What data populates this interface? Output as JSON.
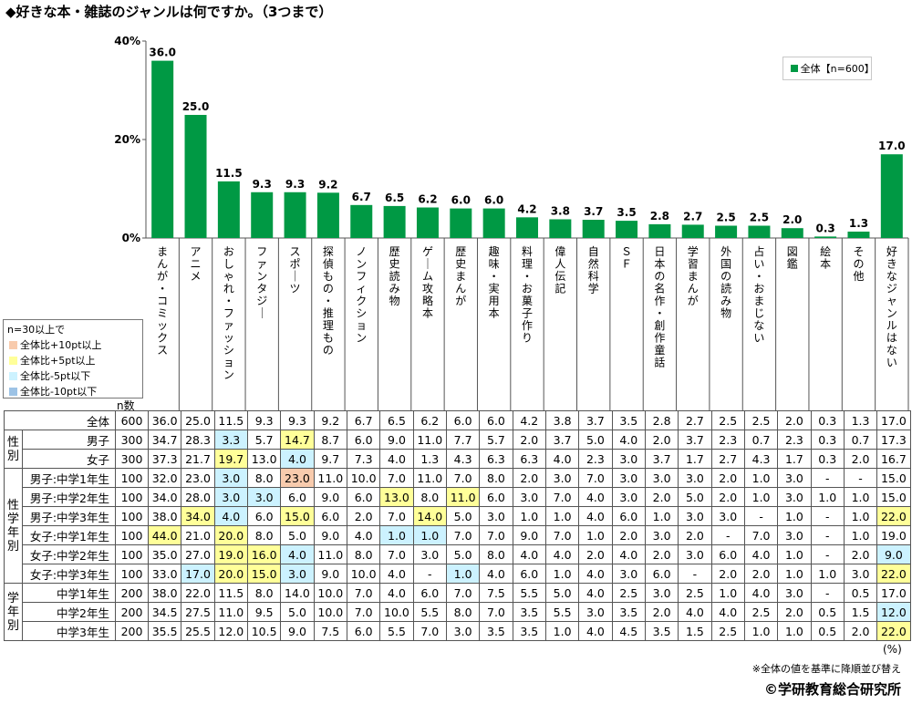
{
  "title": "◆好きな本・雑誌のジャンルは何ですか。（3つまで）",
  "legend_label": "全体【n=600】",
  "highlight_legend": {
    "header": "n=30以上で",
    "items": [
      {
        "label": "全体比+10pt以上",
        "color": "#f8cbad"
      },
      {
        "label": "全体比+5pt以上",
        "color": "#ffff99"
      },
      {
        "label": "全体比-5pt以下",
        "color": "#ccf2ff"
      },
      {
        "label": "全体比-10pt以下",
        "color": "#9dc3e6"
      }
    ]
  },
  "n_label": "n数",
  "unit_label": "(%)",
  "note": "※全体の値を基準に降順並び替え",
  "copyright": "©学研教育総合研究所",
  "colors": {
    "bar": "#009944",
    "plus10": "#f8cbad",
    "plus5": "#ffff99",
    "minus5": "#ccf2ff",
    "minus10": "#9dc3e6"
  },
  "chart_data": {
    "type": "bar",
    "title": "◆好きな本・雑誌のジャンルは何ですか。（3つまで）",
    "categories": [
      "まんが・コミックス",
      "アニメ",
      "おしゃれ・ファッション",
      "ファンタジー",
      "スポーツ",
      "探偵もの・推理もの",
      "ノンフィクション",
      "歴史読み物",
      "ゲーム攻略本",
      "歴史まんが",
      "趣味・実用本",
      "料理・お菓子作り",
      "偉人伝記",
      "自然科学",
      "ＳＦ",
      "日本の名作・創作童話",
      "学習まんが",
      "外国の読み物",
      "占い・おまじない",
      "図鑑",
      "絵本",
      "その他",
      "好きなジャンルはない"
    ],
    "series": [
      {
        "name": "全体【n=600】",
        "values": [
          36.0,
          25.0,
          11.5,
          9.3,
          9.3,
          9.2,
          6.7,
          6.5,
          6.2,
          6.0,
          6.0,
          4.2,
          3.8,
          3.7,
          3.5,
          2.8,
          2.7,
          2.5,
          2.5,
          2.0,
          0.3,
          1.3,
          17.0
        ]
      }
    ],
    "yticks": [
      "0%",
      "20%",
      "40%"
    ],
    "ylim": [
      0,
      40
    ],
    "grid": false,
    "legend_position": "top-right"
  },
  "table": {
    "rows": [
      {
        "group": "",
        "label": "全体",
        "n": "600",
        "values": [
          "36.0",
          "25.0",
          "11.5",
          "9.3",
          "9.3",
          "9.2",
          "6.7",
          "6.5",
          "6.2",
          "6.0",
          "6.0",
          "4.2",
          "3.8",
          "3.7",
          "3.5",
          "2.8",
          "2.7",
          "2.5",
          "2.5",
          "2.0",
          "0.3",
          "1.3",
          "17.0"
        ],
        "hl": {}
      },
      {
        "group": "性別",
        "label": "男子",
        "n": "300",
        "values": [
          "34.7",
          "28.3",
          "3.3",
          "5.7",
          "14.7",
          "8.7",
          "6.0",
          "9.0",
          "11.0",
          "7.7",
          "5.7",
          "2.0",
          "3.7",
          "5.0",
          "4.0",
          "2.0",
          "3.7",
          "2.3",
          "0.7",
          "2.3",
          "0.3",
          "0.7",
          "17.3"
        ],
        "hl": {
          "2": "minus5",
          "4": "plus5"
        }
      },
      {
        "group": "性別",
        "label": "女子",
        "n": "300",
        "values": [
          "37.3",
          "21.7",
          "19.7",
          "13.0",
          "4.0",
          "9.7",
          "7.3",
          "4.0",
          "1.3",
          "4.3",
          "6.3",
          "6.3",
          "4.0",
          "2.3",
          "3.0",
          "3.7",
          "1.7",
          "2.7",
          "4.3",
          "1.7",
          "0.3",
          "2.0",
          "16.7"
        ],
        "hl": {
          "2": "plus5",
          "4": "minus5"
        }
      },
      {
        "group": "性学年別",
        "label": "男子:中学1年生",
        "n": "100",
        "values": [
          "32.0",
          "23.0",
          "3.0",
          "8.0",
          "23.0",
          "11.0",
          "10.0",
          "7.0",
          "11.0",
          "7.0",
          "8.0",
          "2.0",
          "3.0",
          "7.0",
          "3.0",
          "3.0",
          "3.0",
          "2.0",
          "1.0",
          "3.0",
          "-",
          "-",
          "15.0"
        ],
        "hl": {
          "2": "minus5",
          "4": "plus10"
        }
      },
      {
        "group": "性学年別",
        "label": "男子:中学2年生",
        "n": "100",
        "values": [
          "34.0",
          "28.0",
          "3.0",
          "3.0",
          "6.0",
          "9.0",
          "6.0",
          "13.0",
          "8.0",
          "11.0",
          "6.0",
          "3.0",
          "7.0",
          "4.0",
          "3.0",
          "2.0",
          "5.0",
          "2.0",
          "1.0",
          "3.0",
          "1.0",
          "1.0",
          "15.0"
        ],
        "hl": {
          "2": "minus5",
          "3": "minus5",
          "7": "plus5",
          "9": "plus5"
        }
      },
      {
        "group": "性学年別",
        "label": "男子:中学3年生",
        "n": "100",
        "values": [
          "38.0",
          "34.0",
          "4.0",
          "6.0",
          "15.0",
          "6.0",
          "2.0",
          "7.0",
          "14.0",
          "5.0",
          "3.0",
          "1.0",
          "1.0",
          "4.0",
          "6.0",
          "1.0",
          "3.0",
          "3.0",
          "-",
          "1.0",
          "-",
          "1.0",
          "22.0"
        ],
        "hl": {
          "1": "plus5",
          "2": "minus5",
          "4": "plus5",
          "8": "plus5",
          "22": "plus5"
        }
      },
      {
        "group": "性学年別",
        "label": "女子:中学1年生",
        "n": "100",
        "values": [
          "44.0",
          "21.0",
          "20.0",
          "8.0",
          "5.0",
          "9.0",
          "4.0",
          "1.0",
          "1.0",
          "7.0",
          "7.0",
          "9.0",
          "7.0",
          "1.0",
          "2.0",
          "3.0",
          "2.0",
          "-",
          "7.0",
          "3.0",
          "-",
          "1.0",
          "19.0"
        ],
        "hl": {
          "0": "plus5",
          "2": "plus5",
          "7": "minus5",
          "8": "minus5"
        }
      },
      {
        "group": "性学年別",
        "label": "女子:中学2年生",
        "n": "100",
        "values": [
          "35.0",
          "27.0",
          "19.0",
          "16.0",
          "4.0",
          "11.0",
          "8.0",
          "7.0",
          "3.0",
          "5.0",
          "8.0",
          "4.0",
          "4.0",
          "2.0",
          "4.0",
          "2.0",
          "3.0",
          "6.0",
          "4.0",
          "1.0",
          "-",
          "2.0",
          "9.0"
        ],
        "hl": {
          "2": "plus5",
          "3": "plus5",
          "4": "minus5",
          "22": "minus5"
        }
      },
      {
        "group": "性学年別",
        "label": "女子:中学3年生",
        "n": "100",
        "values": [
          "33.0",
          "17.0",
          "20.0",
          "15.0",
          "3.0",
          "9.0",
          "10.0",
          "4.0",
          "-",
          "1.0",
          "4.0",
          "6.0",
          "1.0",
          "4.0",
          "3.0",
          "6.0",
          "-",
          "2.0",
          "2.0",
          "1.0",
          "1.0",
          "3.0",
          "22.0"
        ],
        "hl": {
          "1": "minus5",
          "2": "plus5",
          "3": "plus5",
          "4": "minus5",
          "9": "minus5",
          "22": "plus5"
        }
      },
      {
        "group": "学年別",
        "label": "中学1年生",
        "n": "200",
        "values": [
          "38.0",
          "22.0",
          "11.5",
          "8.0",
          "14.0",
          "10.0",
          "7.0",
          "4.0",
          "6.0",
          "7.0",
          "7.5",
          "5.5",
          "5.0",
          "4.0",
          "2.5",
          "3.0",
          "2.5",
          "1.0",
          "4.0",
          "3.0",
          "-",
          "0.5",
          "17.0"
        ],
        "hl": {}
      },
      {
        "group": "学年別",
        "label": "中学2年生",
        "n": "200",
        "values": [
          "34.5",
          "27.5",
          "11.0",
          "9.5",
          "5.0",
          "10.0",
          "7.0",
          "10.0",
          "5.5",
          "8.0",
          "7.0",
          "3.5",
          "5.5",
          "3.0",
          "3.5",
          "2.0",
          "4.0",
          "4.0",
          "2.5",
          "2.0",
          "0.5",
          "1.5",
          "12.0"
        ],
        "hl": {
          "22": "minus5"
        }
      },
      {
        "group": "学年別",
        "label": "中学3年生",
        "n": "200",
        "values": [
          "35.5",
          "25.5",
          "12.0",
          "10.5",
          "9.0",
          "7.5",
          "6.0",
          "5.5",
          "7.0",
          "3.0",
          "3.5",
          "3.5",
          "1.0",
          "4.0",
          "4.5",
          "3.5",
          "1.5",
          "2.5",
          "1.0",
          "1.0",
          "0.5",
          "2.0",
          "22.0"
        ],
        "hl": {
          "22": "plus5"
        }
      }
    ]
  }
}
